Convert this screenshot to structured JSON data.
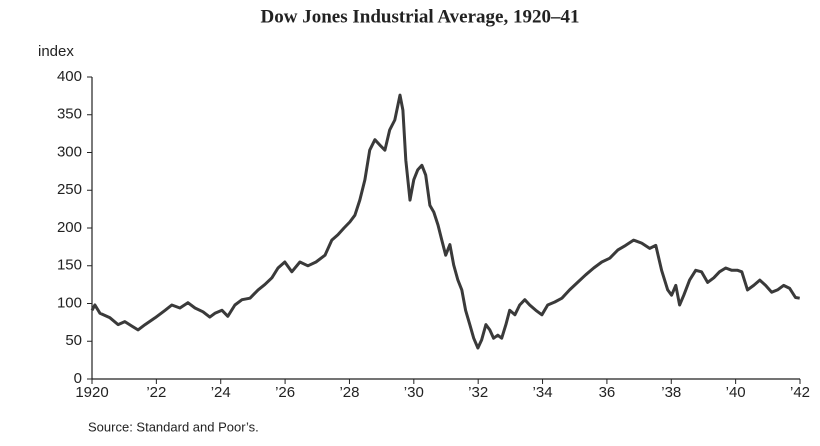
{
  "chart_data": {
    "type": "line",
    "title": "Dow Jones Industrial Average, 1920–41",
    "y_label": "index",
    "source": "Source: Standard and Poor’s.",
    "xlim": [
      1920,
      1942
    ],
    "ylim": [
      0,
      400
    ],
    "xticks": [
      {
        "value": 1920,
        "label": "1920"
      },
      {
        "value": 1922,
        "label": "’22"
      },
      {
        "value": 1924,
        "label": "’24"
      },
      {
        "value": 1926,
        "label": "’26"
      },
      {
        "value": 1928,
        "label": "’28"
      },
      {
        "value": 1930,
        "label": "’30"
      },
      {
        "value": 1932,
        "label": "’32"
      },
      {
        "value": 1934,
        "label": "’34"
      },
      {
        "value": 1936,
        "label": "36"
      },
      {
        "value": 1938,
        "label": "’38"
      },
      {
        "value": 1940,
        "label": "’40"
      },
      {
        "value": 1942,
        "label": "’42"
      }
    ],
    "yticks": [
      0,
      50,
      100,
      150,
      200,
      250,
      300,
      350,
      400
    ],
    "grid": false,
    "series": [
      {
        "color": "#3a3a3a",
        "x": [
          1920.0,
          1920.09,
          1920.25,
          1920.56,
          1920.81,
          1921.02,
          1921.24,
          1921.43,
          1921.65,
          1921.96,
          1922.27,
          1922.48,
          1922.73,
          1922.98,
          1923.2,
          1923.45,
          1923.66,
          1923.82,
          1924.04,
          1924.22,
          1924.44,
          1924.66,
          1924.91,
          1925.16,
          1925.37,
          1925.59,
          1925.78,
          1925.99,
          1926.21,
          1926.46,
          1926.71,
          1926.96,
          1927.24,
          1927.45,
          1927.64,
          1927.83,
          1928.01,
          1928.17,
          1928.32,
          1928.48,
          1928.63,
          1928.79,
          1928.94,
          1929.1,
          1929.25,
          1929.41,
          1929.57,
          1929.66,
          1929.75,
          1929.88,
          1930.0,
          1930.12,
          1930.25,
          1930.37,
          1930.5,
          1930.62,
          1930.75,
          1930.87,
          1930.99,
          1931.12,
          1931.24,
          1931.37,
          1931.49,
          1931.61,
          1931.74,
          1931.86,
          1931.99,
          1932.11,
          1932.24,
          1932.36,
          1932.48,
          1932.61,
          1932.73,
          1932.86,
          1932.98,
          1933.14,
          1933.29,
          1933.45,
          1933.6,
          1933.79,
          1933.98,
          1934.16,
          1934.38,
          1934.6,
          1934.84,
          1935.09,
          1935.34,
          1935.59,
          1935.84,
          1936.09,
          1936.34,
          1936.58,
          1936.83,
          1937.08,
          1937.33,
          1937.52,
          1937.7,
          1937.89,
          1938.01,
          1938.14,
          1938.26,
          1938.39,
          1938.57,
          1938.76,
          1938.94,
          1939.13,
          1939.32,
          1939.5,
          1939.69,
          1939.88,
          1940.06,
          1940.19,
          1940.37,
          1940.56,
          1940.75,
          1940.93,
          1941.12,
          1941.3,
          1941.49,
          1941.68,
          1941.86,
          1941.99
        ],
        "values": [
          91,
          98,
          87,
          81,
          72,
          76,
          70,
          65,
          72,
          81,
          91,
          98,
          94,
          101,
          94,
          89,
          82,
          87,
          91,
          83,
          98,
          105,
          107,
          118,
          125,
          134,
          147,
          155,
          142,
          155,
          150,
          155,
          164,
          184,
          191,
          200,
          208,
          217,
          237,
          264,
          303,
          317,
          310,
          303,
          330,
          343,
          376,
          356,
          290,
          237,
          264,
          277,
          283,
          270,
          230,
          221,
          204,
          184,
          164,
          178,
          151,
          131,
          118,
          91,
          72,
          54,
          41,
          52,
          72,
          65,
          54,
          58,
          54,
          72,
          91,
          85,
          98,
          105,
          98,
          91,
          85,
          98,
          102,
          107,
          118,
          128,
          138,
          147,
          155,
          160,
          171,
          177,
          184,
          180,
          173,
          177,
          144,
          118,
          111,
          124,
          98,
          111,
          131,
          144,
          142,
          128,
          134,
          142,
          147,
          144,
          144,
          142,
          118,
          124,
          131,
          124,
          115,
          118,
          124,
          120,
          108,
          107
        ]
      }
    ]
  }
}
